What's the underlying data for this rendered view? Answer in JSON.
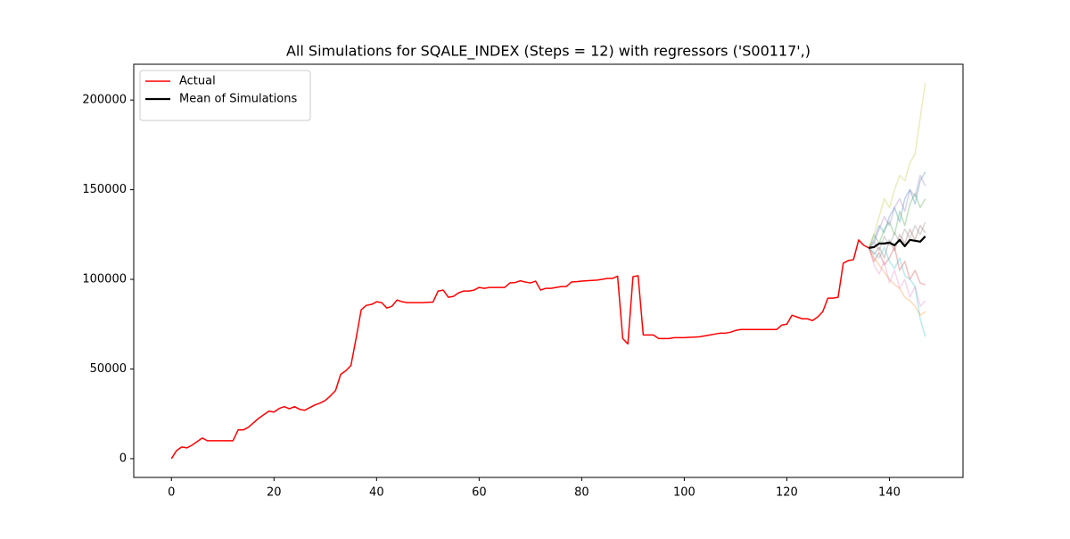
{
  "chart_data": {
    "type": "line",
    "title": "All Simulations for SQALE_INDEX (Steps = 12) with regressors ('S00117',)",
    "xlim": [
      -7.35,
      154.35
    ],
    "ylim": [
      -10475,
      219975
    ],
    "xticks": [
      0,
      20,
      40,
      60,
      80,
      100,
      120,
      140
    ],
    "yticks": [
      0,
      50000,
      100000,
      150000,
      200000
    ],
    "grid": false,
    "legend": "upper left",
    "series": [
      {
        "name": "Actual",
        "color": "#ff0000",
        "width": 1.5,
        "alpha": 1,
        "x": [
          0,
          1,
          2,
          3,
          4,
          5,
          6,
          7,
          8,
          9,
          10,
          11,
          12,
          13,
          14,
          15,
          16,
          17,
          18,
          19,
          20,
          21,
          22,
          23,
          24,
          25,
          26,
          27,
          28,
          29,
          30,
          31,
          32,
          33,
          34,
          35,
          36,
          37,
          38,
          39,
          40,
          41,
          42,
          43,
          44,
          45,
          46,
          47,
          48,
          49,
          50,
          51,
          52,
          53,
          54,
          55,
          56,
          57,
          58,
          59,
          60,
          61,
          62,
          63,
          64,
          65,
          66,
          67,
          68,
          69,
          70,
          71,
          72,
          73,
          74,
          75,
          76,
          77,
          78,
          79,
          80,
          81,
          82,
          83,
          84,
          85,
          86,
          87,
          88,
          89,
          90,
          91,
          92,
          93,
          94,
          95,
          96,
          97,
          98,
          99,
          100,
          101,
          102,
          103,
          104,
          105,
          106,
          107,
          108,
          109,
          110,
          111,
          112,
          113,
          114,
          115,
          116,
          117,
          118,
          119,
          120,
          121,
          122,
          123,
          124,
          125,
          126,
          127,
          128,
          129,
          130,
          131,
          132,
          133,
          134,
          135,
          136
        ],
        "values": [
          0,
          4500,
          6500,
          6000,
          7500,
          9500,
          11500,
          10000,
          10000,
          10000,
          10000,
          10000,
          10000,
          16000,
          16000,
          17500,
          20000,
          22500,
          24500,
          26500,
          26000,
          28000,
          29000,
          27800,
          29000,
          27500,
          27000,
          28500,
          30000,
          31000,
          32500,
          35000,
          38000,
          47000,
          49000,
          52000,
          67000,
          83000,
          85500,
          86000,
          87500,
          87000,
          84000,
          85000,
          88500,
          87500,
          87000,
          87000,
          87000,
          87000,
          87200,
          87300,
          93500,
          94000,
          90000,
          90500,
          92500,
          93500,
          93500,
          94000,
          95500,
          95000,
          95500,
          95500,
          95500,
          95500,
          98000,
          98200,
          99200,
          98500,
          98000,
          99000,
          94000,
          95000,
          95000,
          95500,
          96000,
          96000,
          98500,
          98700,
          99000,
          99200,
          99400,
          99600,
          100000,
          100500,
          100500,
          101800,
          67000,
          64000,
          101500,
          102000,
          69000,
          69000,
          69000,
          67000,
          67000,
          67000,
          67500,
          67500,
          67500,
          67700,
          67800,
          68000,
          68500,
          69000,
          69500,
          70000,
          70000,
          70500,
          71500,
          72000,
          72000,
          72000,
          72000,
          72000,
          72000,
          72000,
          72000,
          74500,
          75000,
          80000,
          79000,
          78000,
          78000,
          77000,
          79000,
          82000,
          89500,
          89500,
          90000,
          109000,
          110500,
          111000,
          122000,
          119000,
          117500
        ]
      },
      {
        "color": "#1f77b4",
        "width": 1.5,
        "alpha": 0.3,
        "x": [
          136,
          137,
          138,
          139,
          140,
          141,
          142,
          143,
          144,
          145,
          146,
          147
        ],
        "values": [
          117500,
          122000,
          130000,
          126000,
          135000,
          140000,
          132000,
          145000,
          150000,
          142000,
          155000,
          160000
        ]
      },
      {
        "color": "#ff7f0e",
        "width": 1.5,
        "alpha": 0.3,
        "x": [
          136,
          137,
          138,
          139,
          140,
          141,
          142,
          143,
          144,
          145,
          146,
          147
        ],
        "values": [
          117500,
          112000,
          108000,
          104000,
          100000,
          97000,
          95000,
          90000,
          88000,
          85000,
          80000,
          82000
        ]
      },
      {
        "color": "#2ca02c",
        "width": 1.5,
        "alpha": 0.3,
        "x": [
          136,
          137,
          138,
          139,
          140,
          141,
          142,
          143,
          144,
          145,
          146,
          147
        ],
        "values": [
          117500,
          125000,
          120000,
          128000,
          132000,
          125000,
          138000,
          130000,
          142000,
          148000,
          140000,
          145000
        ]
      },
      {
        "color": "#d62728",
        "width": 1.5,
        "alpha": 0.3,
        "x": [
          136,
          137,
          138,
          139,
          140,
          141,
          142,
          143,
          144,
          145,
          146,
          147
        ],
        "values": [
          117500,
          110000,
          115000,
          108000,
          112000,
          118000,
          105000,
          110000,
          100000,
          105000,
          98000,
          97000
        ]
      },
      {
        "color": "#9467bd",
        "width": 1.5,
        "alpha": 0.3,
        "x": [
          136,
          137,
          138,
          139,
          140,
          141,
          142,
          143,
          144,
          145,
          146,
          147
        ],
        "values": [
          117500,
          120000,
          128000,
          135000,
          130000,
          140000,
          145000,
          138000,
          150000,
          146000,
          158000,
          152000
        ]
      },
      {
        "color": "#8c564b",
        "width": 1.5,
        "alpha": 0.3,
        "x": [
          136,
          137,
          138,
          139,
          140,
          141,
          142,
          143,
          144,
          145,
          146,
          147
        ],
        "values": [
          117500,
          114000,
          118000,
          112000,
          122000,
          116000,
          125000,
          120000,
          128000,
          122000,
          130000,
          126000
        ]
      },
      {
        "color": "#e377c2",
        "width": 1.5,
        "alpha": 0.3,
        "x": [
          136,
          137,
          138,
          139,
          140,
          141,
          142,
          143,
          144,
          145,
          146,
          147
        ],
        "values": [
          117500,
          108000,
          103000,
          110000,
          98000,
          105000,
          95000,
          100000,
          90000,
          96000,
          85000,
          88000
        ]
      },
      {
        "color": "#7f7f7f",
        "width": 1.5,
        "alpha": 0.3,
        "x": [
          136,
          137,
          138,
          139,
          140,
          141,
          142,
          143,
          144,
          145,
          146,
          147
        ],
        "values": [
          117500,
          121000,
          116000,
          124000,
          119000,
          126000,
          121000,
          128000,
          123000,
          130000,
          125000,
          132000
        ]
      },
      {
        "color": "#bcbd22",
        "width": 1.5,
        "alpha": 0.3,
        "x": [
          136,
          137,
          138,
          139,
          140,
          141,
          142,
          143,
          144,
          145,
          146,
          147
        ],
        "values": [
          117500,
          125000,
          135000,
          145000,
          140000,
          150000,
          158000,
          155000,
          165000,
          170000,
          190000,
          209500
        ]
      },
      {
        "color": "#17becf",
        "width": 1.5,
        "alpha": 0.3,
        "x": [
          136,
          137,
          138,
          139,
          140,
          141,
          142,
          143,
          144,
          145,
          146,
          147
        ],
        "values": [
          117500,
          115000,
          112000,
          118000,
          110000,
          106000,
          112000,
          102000,
          100000,
          96000,
          78000,
          68000
        ]
      },
      {
        "name": "Mean of Simulations",
        "color": "#000000",
        "width": 2.2,
        "alpha": 1,
        "x": [
          136,
          137,
          138,
          139,
          140,
          141,
          142,
          143,
          144,
          145,
          146,
          147
        ],
        "values": [
          117500,
          118000,
          120000,
          120000,
          120500,
          119000,
          122000,
          118500,
          122000,
          121500,
          121000,
          124000
        ]
      }
    ]
  }
}
